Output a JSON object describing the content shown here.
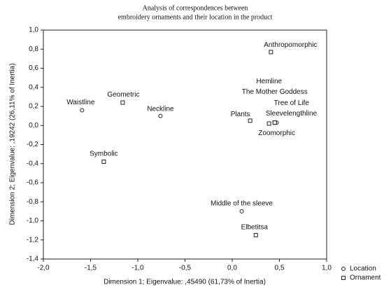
{
  "chart_data": {
    "type": "scatter",
    "title": "Analysis of correspondences between",
    "subtitle": "embroidery ornaments and their location in the product",
    "x_label": "Dimension 1; Eigenvalue: ,45490 (61,73% of Inertia)",
    "y_label": "Dimension 2; Eigenvalue: ,19242 (26,11% of Inertia)",
    "xlim": [
      -2.0,
      1.0
    ],
    "ylim": [
      -1.4,
      1.0
    ],
    "xticks": [
      {
        "value": -2.0,
        "label": "-2,0"
      },
      {
        "value": -1.5,
        "label": "-1,5"
      },
      {
        "value": -1.0,
        "label": "-1,0"
      },
      {
        "value": -0.5,
        "label": "-0,5"
      },
      {
        "value": 0.0,
        "label": "0,0"
      },
      {
        "value": 0.5,
        "label": "0,5"
      },
      {
        "value": 1.0,
        "label": "1,0"
      }
    ],
    "yticks": [
      {
        "value": 1.0,
        "label": "1,0"
      },
      {
        "value": 0.8,
        "label": "0,8"
      },
      {
        "value": 0.6,
        "label": "0,6"
      },
      {
        "value": 0.4,
        "label": "0,4"
      },
      {
        "value": 0.2,
        "label": "0,2"
      },
      {
        "value": 0.0,
        "label": "0,0"
      },
      {
        "value": -0.2,
        "label": "-0,2"
      },
      {
        "value": -0.4,
        "label": "-0,4"
      },
      {
        "value": -0.6,
        "label": "-0,6"
      },
      {
        "value": -0.8,
        "label": "-0,8"
      },
      {
        "value": -1.0,
        "label": "-1,0"
      },
      {
        "value": -1.2,
        "label": "-1,2"
      },
      {
        "value": -1.4,
        "label": "-1,4"
      }
    ],
    "series": [
      {
        "name": "Location",
        "marker": "circle",
        "color": "#222222",
        "labels": [
          "Waistline",
          "Neckline",
          "Sleevelengthline",
          "Hemline",
          "Middle of the sleeve"
        ],
        "x": [
          -1.59,
          -0.76,
          0.47,
          0.45,
          0.1
        ],
        "y": [
          0.16,
          0.1,
          0.03,
          0.03,
          -0.9
        ]
      },
      {
        "name": "Ornament",
        "marker": "square",
        "color": "#222222",
        "labels": [
          "Geometric",
          "Symbolic",
          "Plants",
          "Zoomorphic",
          "The Mother Goddess",
          "Tree of Life",
          "Anthropomorphic",
          "Elbetitsa"
        ],
        "x": [
          -1.16,
          -1.36,
          0.19,
          0.39,
          0.45,
          0.45,
          0.41,
          0.25
        ],
        "y": [
          0.24,
          -0.38,
          0.05,
          0.02,
          0.03,
          0.03,
          0.77,
          -1.15
        ]
      }
    ]
  }
}
